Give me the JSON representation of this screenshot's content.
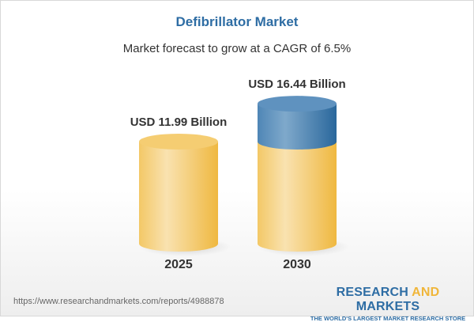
{
  "title": "Defibrillator Market",
  "subtitle": "Market forecast to grow at a CAGR of 6.5%",
  "chart_data": {
    "type": "bar",
    "style": "3d-cylinder",
    "categories": [
      "2025",
      "2030"
    ],
    "values": [
      11.99,
      16.44
    ],
    "data_labels": [
      "USD 11.99 Billion",
      "USD 16.44 Billion"
    ],
    "unit": "USD Billion",
    "colors": {
      "base": "#f2c45e",
      "growth": "#4a80b0"
    }
  },
  "footer": {
    "url": "https://www.researchandmarkets.com/reports/4988878",
    "logo_part1": "RESEARCH ",
    "logo_part2": "AND",
    "logo_part3": " MARKETS",
    "tagline": "THE WORLD'S LARGEST MARKET RESEARCH STORE"
  }
}
